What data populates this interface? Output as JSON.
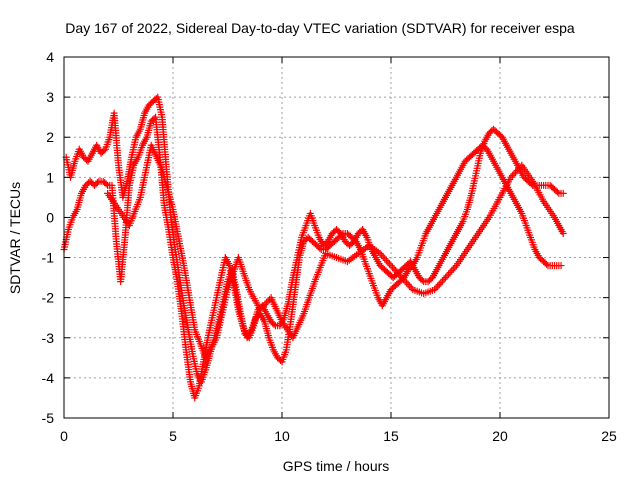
{
  "chart_data": {
    "type": "scatter",
    "title": "Day 167 of 2022, Sidereal Day-to-day VTEC variation (SDTVAR) for receiver espa",
    "xlabel": "GPS time / hours",
    "ylabel": "SDTVAR / TECUs",
    "xlim": [
      0,
      25
    ],
    "ylim": [
      -5,
      4
    ],
    "x_ticks": [
      "0",
      "5",
      "10",
      "15",
      "20",
      "25"
    ],
    "y_ticks": [
      "-5",
      "-4",
      "-3",
      "-2",
      "-1",
      "0",
      "1",
      "2",
      "3",
      "4"
    ],
    "grid": true,
    "marker": "+",
    "color": "#ff0000",
    "series": [
      {
        "x": [
          0.0,
          0.2,
          0.4,
          0.6,
          0.8,
          1.0,
          1.2,
          1.4,
          1.6,
          1.8,
          2.0,
          2.2,
          2.4,
          2.6,
          2.8,
          3.0,
          3.2,
          3.4,
          3.6,
          3.8,
          4.0,
          4.2,
          4.4,
          4.6,
          4.8,
          5.0,
          5.2,
          5.4,
          5.6,
          5.8,
          6.0,
          6.2,
          6.4,
          6.6,
          6.8,
          7.0,
          7.2,
          7.4,
          7.6,
          7.8,
          8.0,
          8.2,
          8.4,
          8.6,
          8.8,
          9.0,
          9.2,
          9.4,
          9.6,
          9.8,
          10.0,
          10.2,
          10.4,
          10.6,
          10.8,
          11.0,
          11.2,
          11.4,
          11.6,
          11.8,
          12.0,
          12.2,
          12.4,
          12.6,
          12.8,
          13.0,
          13.2,
          13.4,
          13.6,
          13.8,
          14.0,
          14.2,
          14.4,
          14.6,
          14.8,
          15.0,
          15.2,
          15.4,
          15.6,
          15.8,
          16.0,
          16.2,
          16.4,
          16.6,
          16.8,
          17.0,
          17.2,
          17.4,
          17.6,
          17.8,
          18.0,
          18.2,
          18.4,
          18.6,
          18.8,
          19.0,
          19.2,
          19.4,
          19.6,
          19.8,
          20.0,
          20.2,
          20.4,
          20.6,
          20.8,
          21.0,
          21.2,
          21.4,
          21.6,
          21.8,
          22.0,
          22.2,
          22.4,
          22.6,
          22.8
        ],
        "y": [
          -0.8,
          -0.3,
          0.0,
          0.2,
          0.6,
          0.8,
          0.9,
          0.8,
          0.9,
          0.9,
          0.8,
          0.8,
          -0.6,
          -1.6,
          -0.5,
          0.8,
          1.3,
          1.5,
          1.8,
          2.0,
          2.4,
          2.5,
          1.5,
          0.3,
          -0.3,
          -1.0,
          -1.6,
          -2.4,
          -3.3,
          -4.1,
          -4.5,
          -4.2,
          -3.6,
          -3.0,
          -2.5,
          -2.0,
          -1.5,
          -1.0,
          -1.2,
          -1.7,
          -2.3,
          -2.7,
          -3.0,
          -2.8,
          -2.5,
          -2.4,
          -2.6,
          -3.0,
          -3.3,
          -3.5,
          -3.6,
          -3.3,
          -2.6,
          -1.8,
          -1.0,
          -0.6,
          -0.5,
          -0.6,
          -0.7,
          -0.8,
          -0.8,
          -0.7,
          -0.6,
          -0.5,
          -0.4,
          -0.4,
          -0.5,
          -0.6,
          -0.8,
          -1.1,
          -1.4,
          -1.7,
          -2.0,
          -2.2,
          -2.0,
          -1.8,
          -1.7,
          -1.6,
          -1.5,
          -1.3,
          -1.2,
          -1.0,
          -0.7,
          -0.4,
          -0.2,
          0.0,
          0.2,
          0.4,
          0.6,
          0.8,
          1.0,
          1.2,
          1.4,
          1.5,
          1.6,
          1.7,
          1.8,
          1.7,
          1.5,
          1.3,
          1.1,
          0.9,
          0.7,
          0.5,
          0.3,
          0.1,
          -0.2,
          -0.5,
          -0.8,
          -1.0,
          -1.1,
          -1.2,
          -1.2,
          -1.2,
          -1.2
        ]
      },
      {
        "x": [
          0.1,
          0.3,
          0.5,
          0.7,
          0.9,
          1.1,
          1.3,
          1.5,
          1.7,
          1.9,
          2.1,
          2.3,
          2.5,
          2.7,
          2.9,
          3.1,
          3.3,
          3.5,
          3.7,
          3.9,
          4.1,
          4.3,
          4.5,
          4.7,
          4.9,
          5.1,
          5.3,
          5.5,
          5.7,
          5.9,
          6.1,
          6.3,
          6.5,
          6.7,
          6.9,
          7.1,
          7.3,
          7.5,
          7.7,
          7.9,
          8.1,
          8.3,
          8.5,
          8.7,
          8.9,
          9.1,
          9.3,
          9.5,
          9.7,
          9.9,
          10.1,
          10.3,
          10.5,
          10.7,
          10.9,
          11.1,
          11.3,
          11.5,
          11.7,
          11.9,
          12.1,
          12.3,
          12.5,
          12.7,
          12.9,
          13.1,
          13.3,
          13.5,
          13.7,
          13.9,
          14.1,
          14.3,
          14.5,
          14.7,
          14.9,
          15.1,
          15.3,
          15.5,
          15.7,
          15.9,
          16.1,
          16.3,
          16.5,
          16.7,
          16.9,
          17.1,
          17.3,
          17.5,
          17.7,
          17.9,
          18.1,
          18.3,
          18.5,
          18.7,
          18.9,
          19.1,
          19.3,
          19.5,
          19.7,
          19.9,
          20.1,
          20.3,
          20.5,
          20.7,
          20.9,
          21.1,
          21.3,
          21.5,
          21.7,
          21.9,
          22.1,
          22.3,
          22.5,
          22.7,
          22.9
        ],
        "y": [
          1.5,
          1.0,
          1.4,
          1.7,
          1.5,
          1.4,
          1.6,
          1.8,
          1.6,
          1.7,
          2.0,
          2.6,
          1.3,
          0.5,
          0.9,
          1.5,
          2.0,
          2.2,
          2.6,
          2.8,
          2.9,
          3.0,
          2.5,
          1.2,
          0.0,
          -0.8,
          -1.5,
          -2.2,
          -2.8,
          -3.4,
          -3.9,
          -4.1,
          -3.8,
          -3.4,
          -3.0,
          -2.6,
          -2.1,
          -1.6,
          -1.3,
          -1.8,
          -2.4,
          -2.9,
          -3.0,
          -2.7,
          -2.3,
          -2.2,
          -2.4,
          -2.6,
          -2.7,
          -2.7,
          -2.5,
          -2.1,
          -1.5,
          -1.0,
          -0.5,
          -0.2,
          0.1,
          -0.2,
          -0.5,
          -0.7,
          -0.6,
          -0.4,
          -0.3,
          -0.4,
          -0.6,
          -0.7,
          -0.6,
          -0.4,
          -0.3,
          -0.5,
          -0.8,
          -1.0,
          -1.2,
          -1.3,
          -1.4,
          -1.5,
          -1.4,
          -1.3,
          -1.2,
          -1.1,
          -1.3,
          -1.5,
          -1.6,
          -1.6,
          -1.5,
          -1.3,
          -1.1,
          -0.9,
          -0.7,
          -0.5,
          -0.3,
          -0.1,
          0.2,
          0.6,
          1.1,
          1.6,
          1.9,
          2.1,
          2.2,
          2.1,
          2.0,
          1.8,
          1.6,
          1.4,
          1.2,
          1.0,
          0.9,
          0.8,
          0.8,
          0.8,
          0.8,
          0.8,
          0.7,
          0.6,
          0.6
        ]
      },
      {
        "x": [
          2.0,
          2.5,
          3.0,
          3.5,
          4.0,
          4.5,
          5.0,
          5.5,
          6.0,
          6.5,
          7.0,
          7.5,
          8.0,
          8.5,
          9.0,
          9.5,
          10.0,
          10.5,
          11.0,
          11.5,
          12.0,
          12.5,
          13.0,
          13.5,
          14.0,
          14.5,
          15.0,
          15.5,
          16.0,
          16.5,
          17.0,
          17.5,
          18.0,
          18.5,
          19.0,
          19.5,
          20.0,
          20.5,
          21.0,
          21.5,
          22.0,
          22.5,
          22.9
        ],
        "y": [
          0.6,
          0.2,
          -0.2,
          0.5,
          1.8,
          1.2,
          0.2,
          -1.2,
          -2.8,
          -3.5,
          -3.0,
          -1.8,
          -1.0,
          -1.8,
          -2.3,
          -2.0,
          -2.6,
          -3.0,
          -2.4,
          -1.6,
          -0.9,
          -1.0,
          -1.1,
          -0.9,
          -0.7,
          -0.9,
          -1.2,
          -1.5,
          -1.8,
          -1.9,
          -1.8,
          -1.5,
          -1.2,
          -0.8,
          -0.4,
          0.0,
          0.5,
          1.0,
          1.3,
          0.9,
          0.4,
          0.0,
          -0.4
        ]
      }
    ]
  }
}
